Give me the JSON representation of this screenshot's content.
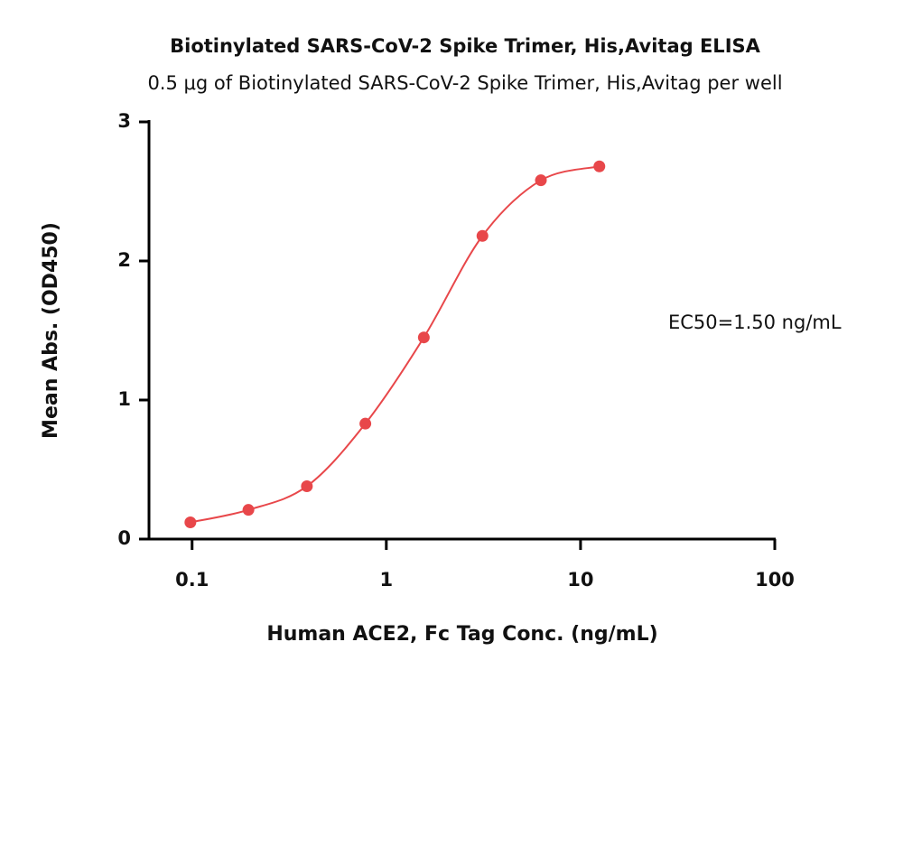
{
  "chart_data": {
    "type": "scatter",
    "title": "Biotinylated SARS-CoV-2 Spike Trimer, His,Avitag ELISA",
    "subtitle": "0.5 μg of Biotinylated SARS-CoV-2 Spike Trimer, His,Avitag per well",
    "x_label": "Human ACE2, Fc Tag Conc. (ng/mL)",
    "y_label": "Mean Abs. (OD450)",
    "annotation": "EC50=1.50 ng/mL",
    "x": [
      0.098,
      0.195,
      0.39,
      0.78,
      1.56,
      3.125,
      6.25,
      12.5
    ],
    "values": [
      0.12,
      0.21,
      0.38,
      0.83,
      1.45,
      2.18,
      2.58,
      2.68
    ],
    "color": "#e8474a",
    "xscale": "log",
    "xlim": [
      0.06,
      100
    ],
    "xticks": [
      0.1,
      1,
      10,
      100
    ],
    "ylim": [
      0,
      3
    ],
    "yticks": [
      0,
      1,
      2,
      3
    ]
  }
}
